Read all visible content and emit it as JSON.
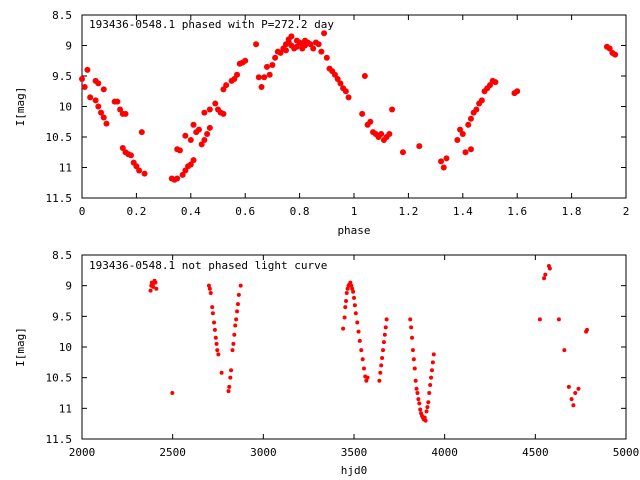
{
  "chart_data": [
    {
      "type": "scatter",
      "title": "193436-0548.1 phased with P=272.2 day",
      "xlabel": "phase",
      "ylabel": "I[mag]",
      "xlim": [
        0,
        2
      ],
      "ylim": [
        8.5,
        11.5
      ],
      "y_reversed": true,
      "grid": false,
      "x_ticks": [
        0,
        0.2,
        0.4,
        0.6,
        0.8,
        1,
        1.2,
        1.4,
        1.6,
        1.8,
        2
      ],
      "x_tick_labels": [
        "0",
        "0.2",
        "0.4",
        "0.6",
        "0.8",
        "1",
        "1.2",
        "1.4",
        "1.6",
        "1.8",
        "2"
      ],
      "y_ticks": [
        8.5,
        9,
        9.5,
        10,
        10.5,
        11,
        11.5
      ],
      "y_tick_labels": [
        "8.5",
        "9",
        "9.5",
        "10",
        "10.5",
        "11",
        "11.5"
      ],
      "marker_color": "#ff0000",
      "points": [
        [
          0.0,
          9.55
        ],
        [
          0.01,
          9.68
        ],
        [
          0.02,
          9.4
        ],
        [
          0.03,
          9.85
        ],
        [
          0.05,
          9.9
        ],
        [
          0.05,
          9.58
        ],
        [
          0.06,
          10.0
        ],
        [
          0.06,
          9.62
        ],
        [
          0.07,
          10.1
        ],
        [
          0.08,
          10.18
        ],
        [
          0.08,
          9.72
        ],
        [
          0.09,
          10.28
        ],
        [
          0.12,
          9.92
        ],
        [
          0.13,
          9.92
        ],
        [
          0.14,
          10.05
        ],
        [
          0.15,
          10.12
        ],
        [
          0.15,
          10.68
        ],
        [
          0.16,
          10.75
        ],
        [
          0.16,
          10.12
        ],
        [
          0.17,
          10.78
        ],
        [
          0.18,
          10.8
        ],
        [
          0.19,
          10.92
        ],
        [
          0.2,
          10.98
        ],
        [
          0.21,
          11.05
        ],
        [
          0.22,
          10.42
        ],
        [
          0.23,
          11.1
        ],
        [
          0.33,
          11.18
        ],
        [
          0.34,
          11.2
        ],
        [
          0.35,
          11.18
        ],
        [
          0.35,
          10.7
        ],
        [
          0.36,
          10.72
        ],
        [
          0.37,
          11.12
        ],
        [
          0.38,
          11.05
        ],
        [
          0.38,
          10.48
        ],
        [
          0.39,
          10.98
        ],
        [
          0.4,
          10.95
        ],
        [
          0.4,
          10.55
        ],
        [
          0.41,
          10.88
        ],
        [
          0.41,
          10.3
        ],
        [
          0.42,
          10.42
        ],
        [
          0.43,
          10.38
        ],
        [
          0.44,
          10.62
        ],
        [
          0.45,
          10.55
        ],
        [
          0.45,
          10.1
        ],
        [
          0.46,
          10.45
        ],
        [
          0.47,
          10.35
        ],
        [
          0.47,
          10.05
        ],
        [
          0.49,
          9.95
        ],
        [
          0.5,
          10.05
        ],
        [
          0.51,
          10.1
        ],
        [
          0.52,
          10.12
        ],
        [
          0.52,
          9.72
        ],
        [
          0.53,
          9.65
        ],
        [
          0.55,
          9.58
        ],
        [
          0.56,
          9.55
        ],
        [
          0.57,
          9.48
        ],
        [
          0.58,
          9.3
        ],
        [
          0.59,
          9.28
        ],
        [
          0.6,
          9.25
        ],
        [
          0.64,
          8.98
        ],
        [
          0.65,
          9.52
        ],
        [
          0.66,
          9.68
        ],
        [
          0.67,
          9.52
        ],
        [
          0.68,
          9.35
        ],
        [
          0.69,
          9.48
        ],
        [
          0.7,
          9.32
        ],
        [
          0.71,
          9.2
        ],
        [
          0.72,
          9.1
        ],
        [
          0.73,
          9.12
        ],
        [
          0.74,
          9.05
        ],
        [
          0.75,
          8.98
        ],
        [
          0.75,
          9.08
        ],
        [
          0.76,
          8.9
        ],
        [
          0.76,
          8.95
        ],
        [
          0.77,
          8.85
        ],
        [
          0.77,
          9.0
        ],
        [
          0.78,
          9.05
        ],
        [
          0.79,
          8.92
        ],
        [
          0.79,
          9.02
        ],
        [
          0.8,
          8.95
        ],
        [
          0.81,
          8.98
        ],
        [
          0.81,
          9.05
        ],
        [
          0.82,
          8.92
        ],
        [
          0.82,
          9.0
        ],
        [
          0.83,
          8.95
        ],
        [
          0.84,
          8.98
        ],
        [
          0.85,
          9.05
        ],
        [
          0.86,
          8.95
        ],
        [
          0.87,
          8.98
        ],
        [
          0.88,
          9.1
        ],
        [
          0.89,
          8.8
        ],
        [
          0.9,
          9.2
        ],
        [
          0.91,
          9.38
        ],
        [
          0.92,
          9.42
        ],
        [
          0.93,
          9.48
        ],
        [
          0.94,
          9.55
        ],
        [
          0.95,
          9.62
        ],
        [
          0.96,
          9.7
        ],
        [
          0.97,
          9.75
        ],
        [
          0.98,
          9.85
        ],
        [
          1.03,
          10.12
        ],
        [
          1.04,
          9.5
        ],
        [
          1.05,
          10.3
        ],
        [
          1.06,
          10.25
        ],
        [
          1.07,
          10.42
        ],
        [
          1.08,
          10.45
        ],
        [
          1.09,
          10.5
        ],
        [
          1.1,
          10.45
        ],
        [
          1.11,
          10.55
        ],
        [
          1.12,
          10.5
        ],
        [
          1.13,
          10.45
        ],
        [
          1.14,
          10.05
        ],
        [
          1.18,
          10.75
        ],
        [
          1.24,
          10.65
        ],
        [
          1.32,
          10.9
        ],
        [
          1.33,
          11.0
        ],
        [
          1.34,
          10.85
        ],
        [
          1.38,
          10.55
        ],
        [
          1.39,
          10.38
        ],
        [
          1.4,
          10.45
        ],
        [
          1.41,
          10.75
        ],
        [
          1.42,
          10.3
        ],
        [
          1.43,
          10.7
        ],
        [
          1.43,
          10.2
        ],
        [
          1.44,
          10.1
        ],
        [
          1.45,
          10.05
        ],
        [
          1.46,
          9.95
        ],
        [
          1.47,
          9.9
        ],
        [
          1.48,
          9.75
        ],
        [
          1.49,
          9.7
        ],
        [
          1.5,
          9.65
        ],
        [
          1.51,
          9.58
        ],
        [
          1.52,
          9.6
        ],
        [
          1.59,
          9.78
        ],
        [
          1.6,
          9.75
        ],
        [
          1.93,
          9.02
        ],
        [
          1.94,
          9.05
        ],
        [
          1.95,
          9.12
        ],
        [
          1.96,
          9.15
        ]
      ]
    },
    {
      "type": "scatter",
      "title": "193436-0548.1 not phased light curve",
      "xlabel": "hjd0",
      "ylabel": "I[mag]",
      "xlim": [
        2000,
        5000
      ],
      "ylim": [
        8.5,
        11.5
      ],
      "y_reversed": true,
      "grid": false,
      "x_ticks": [
        2000,
        2500,
        3000,
        3500,
        4000,
        4500,
        5000
      ],
      "x_tick_labels": [
        "2000",
        "2500",
        "3000",
        "3500",
        "4000",
        "4500",
        "5000"
      ],
      "y_ticks": [
        8.5,
        9,
        9.5,
        10,
        10.5,
        11,
        11.5
      ],
      "y_tick_labels": [
        "8.5",
        "9",
        "9.5",
        "10",
        "10.5",
        "11",
        "11.5"
      ],
      "marker_color": "#ff0000",
      "points": [
        [
          2378,
          9.08
        ],
        [
          2382,
          9.0
        ],
        [
          2385,
          8.95
        ],
        [
          2390,
          8.98
        ],
        [
          2393,
          9.02
        ],
        [
          2396,
          8.95
        ],
        [
          2400,
          8.92
        ],
        [
          2405,
          8.95
        ],
        [
          2410,
          9.05
        ],
        [
          2498,
          10.75
        ],
        [
          2700,
          9.0
        ],
        [
          2705,
          9.05
        ],
        [
          2710,
          9.12
        ],
        [
          2718,
          9.35
        ],
        [
          2722,
          9.45
        ],
        [
          2728,
          9.6
        ],
        [
          2733,
          9.72
        ],
        [
          2738,
          9.85
        ],
        [
          2742,
          9.95
        ],
        [
          2746,
          10.05
        ],
        [
          2752,
          10.12
        ],
        [
          2770,
          10.42
        ],
        [
          2808,
          10.72
        ],
        [
          2812,
          10.65
        ],
        [
          2818,
          10.5
        ],
        [
          2822,
          10.38
        ],
        [
          2830,
          10.05
        ],
        [
          2835,
          9.95
        ],
        [
          2840,
          9.8
        ],
        [
          2845,
          9.65
        ],
        [
          2850,
          9.55
        ],
        [
          2855,
          9.42
        ],
        [
          2860,
          9.3
        ],
        [
          2865,
          9.15
        ],
        [
          2875,
          9.0
        ],
        [
          3440,
          9.7
        ],
        [
          3448,
          9.52
        ],
        [
          3452,
          9.35
        ],
        [
          3456,
          9.25
        ],
        [
          3460,
          9.12
        ],
        [
          3465,
          9.05
        ],
        [
          3470,
          9.0
        ],
        [
          3475,
          8.98
        ],
        [
          3480,
          8.95
        ],
        [
          3485,
          9.0
        ],
        [
          3490,
          9.05
        ],
        [
          3495,
          9.1
        ],
        [
          3500,
          9.2
        ],
        [
          3505,
          9.32
        ],
        [
          3510,
          9.45
        ],
        [
          3518,
          9.6
        ],
        [
          3525,
          9.75
        ],
        [
          3532,
          9.9
        ],
        [
          3540,
          10.05
        ],
        [
          3548,
          10.2
        ],
        [
          3555,
          10.35
        ],
        [
          3562,
          10.48
        ],
        [
          3568,
          10.55
        ],
        [
          3575,
          10.5
        ],
        [
          3640,
          10.55
        ],
        [
          3645,
          10.42
        ],
        [
          3650,
          10.3
        ],
        [
          3655,
          10.18
        ],
        [
          3660,
          10.05
        ],
        [
          3665,
          9.92
        ],
        [
          3670,
          9.8
        ],
        [
          3675,
          9.68
        ],
        [
          3680,
          9.55
        ],
        [
          3810,
          9.55
        ],
        [
          3815,
          9.68
        ],
        [
          3820,
          9.85
        ],
        [
          3825,
          10.05
        ],
        [
          3830,
          10.2
        ],
        [
          3835,
          10.35
        ],
        [
          3840,
          10.55
        ],
        [
          3845,
          10.68
        ],
        [
          3850,
          10.75
        ],
        [
          3855,
          10.85
        ],
        [
          3860,
          10.92
        ],
        [
          3865,
          11.02
        ],
        [
          3870,
          11.08
        ],
        [
          3875,
          11.12
        ],
        [
          3880,
          11.15
        ],
        [
          3885,
          11.18
        ],
        [
          3890,
          11.15
        ],
        [
          3895,
          11.2
        ],
        [
          3900,
          11.05
        ],
        [
          3905,
          10.98
        ],
        [
          3910,
          10.9
        ],
        [
          3915,
          10.75
        ],
        [
          3920,
          10.62
        ],
        [
          3925,
          10.5
        ],
        [
          3930,
          10.38
        ],
        [
          3935,
          10.25
        ],
        [
          3940,
          10.12
        ],
        [
          4525,
          9.55
        ],
        [
          4548,
          8.88
        ],
        [
          4555,
          8.82
        ],
        [
          4575,
          8.68
        ],
        [
          4580,
          8.72
        ],
        [
          4630,
          9.55
        ],
        [
          4660,
          10.05
        ],
        [
          4685,
          10.65
        ],
        [
          4700,
          10.85
        ],
        [
          4710,
          10.95
        ],
        [
          4720,
          10.75
        ],
        [
          4738,
          10.68
        ],
        [
          4780,
          9.75
        ],
        [
          4785,
          9.72
        ]
      ]
    }
  ]
}
